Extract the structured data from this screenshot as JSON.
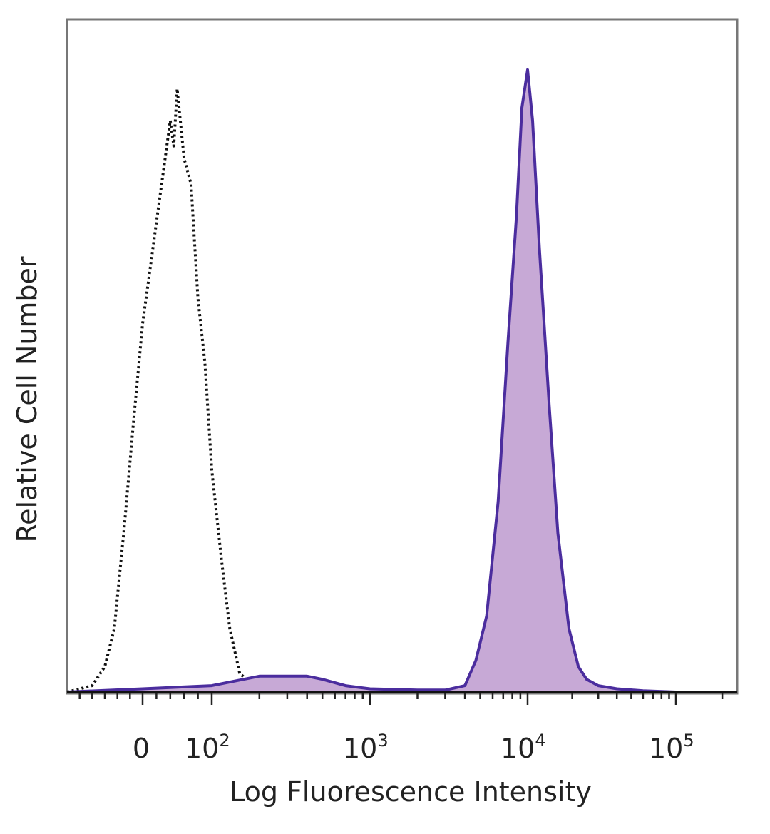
{
  "chart_data": {
    "type": "area",
    "title": "",
    "xlabel": "Log Fluorescence Intensity",
    "ylabel": "Relative Cell Number",
    "x_scale": "biexponential",
    "x_ticks": [
      {
        "value": 0,
        "label": "0"
      },
      {
        "value": 100,
        "base": "10",
        "exp": "2"
      },
      {
        "value": 1000,
        "base": "10",
        "exp": "3"
      },
      {
        "value": 10000,
        "base": "10",
        "exp": "4"
      },
      {
        "value": 100000,
        "base": "10",
        "exp": "5"
      }
    ],
    "xlim": [
      -120,
      250000
    ],
    "ylim": [
      0,
      1
    ],
    "grid": false,
    "legend": "none",
    "series": [
      {
        "style": "dotted-outline",
        "color": "#111111",
        "x": [
          -120,
          -80,
          -60,
          -45,
          -30,
          -15,
          0,
          15,
          30,
          40,
          45,
          50,
          60,
          70,
          80,
          90,
          100,
          115,
          130,
          150,
          180,
          220,
          300,
          500
        ],
        "y": [
          0.0,
          0.01,
          0.04,
          0.1,
          0.25,
          0.42,
          0.58,
          0.7,
          0.82,
          0.9,
          0.86,
          0.95,
          0.84,
          0.8,
          0.62,
          0.52,
          0.35,
          0.21,
          0.1,
          0.03,
          0.01,
          0.005,
          0.002,
          0.0
        ]
      },
      {
        "style": "filled",
        "color": "#4B2D9E",
        "fill": "#C7A9D6",
        "x": [
          -120,
          0,
          100,
          200,
          300,
          400,
          500,
          700,
          1000,
          2000,
          3000,
          4000,
          4700,
          5500,
          6500,
          7500,
          8500,
          9200,
          10000,
          10800,
          12000,
          14000,
          16000,
          19000,
          22000,
          25000,
          30000,
          40000,
          60000,
          100000,
          250000
        ],
        "y": [
          0.0,
          0.005,
          0.01,
          0.025,
          0.025,
          0.025,
          0.02,
          0.01,
          0.005,
          0.003,
          0.003,
          0.01,
          0.05,
          0.12,
          0.3,
          0.55,
          0.75,
          0.92,
          0.98,
          0.9,
          0.7,
          0.45,
          0.25,
          0.1,
          0.04,
          0.02,
          0.01,
          0.005,
          0.002,
          0.0,
          0.0
        ]
      }
    ]
  }
}
